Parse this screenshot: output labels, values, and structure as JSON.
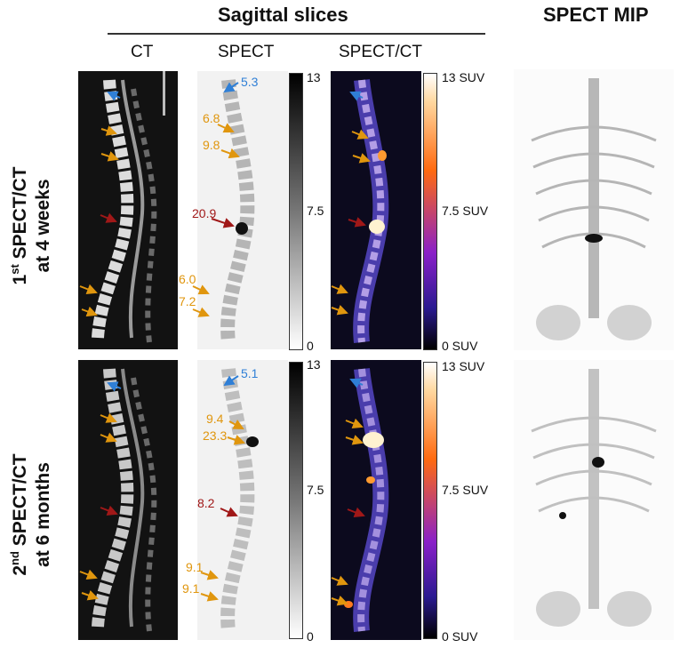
{
  "header": {
    "sagittal": "Sagittal slices",
    "mip": "SPECT MIP",
    "cols": [
      "CT",
      "SPECT",
      "SPECT/CT"
    ]
  },
  "rows": [
    {
      "label_sup": "st",
      "label_a": "1",
      "label_b": " SPECT/CT",
      "label_c": "at 4 weeks",
      "spect_values": [
        "5.3",
        "6.8",
        "9.8",
        "20.9",
        "6.0",
        "7.2"
      ],
      "scale_spect": [
        "13",
        "7.5",
        "0"
      ],
      "scale_fused": [
        "13 SUV",
        "7.5 SUV",
        "0 SUV"
      ]
    },
    {
      "label_sup": "nd",
      "label_a": "2",
      "label_b": " SPECT/CT",
      "label_c": "at 6 months",
      "spect_values": [
        "5.1",
        "9.4",
        "23.3",
        "8.2",
        "9.1",
        "9.1"
      ],
      "scale_spect": [
        "13",
        "7.5",
        "0"
      ],
      "scale_fused": [
        "13 SUV",
        "7.5 SUV",
        "0 SUV"
      ]
    }
  ],
  "colors": {
    "blue": "#2f7fd6",
    "orange": "#e0960e",
    "red": "#a01818"
  }
}
